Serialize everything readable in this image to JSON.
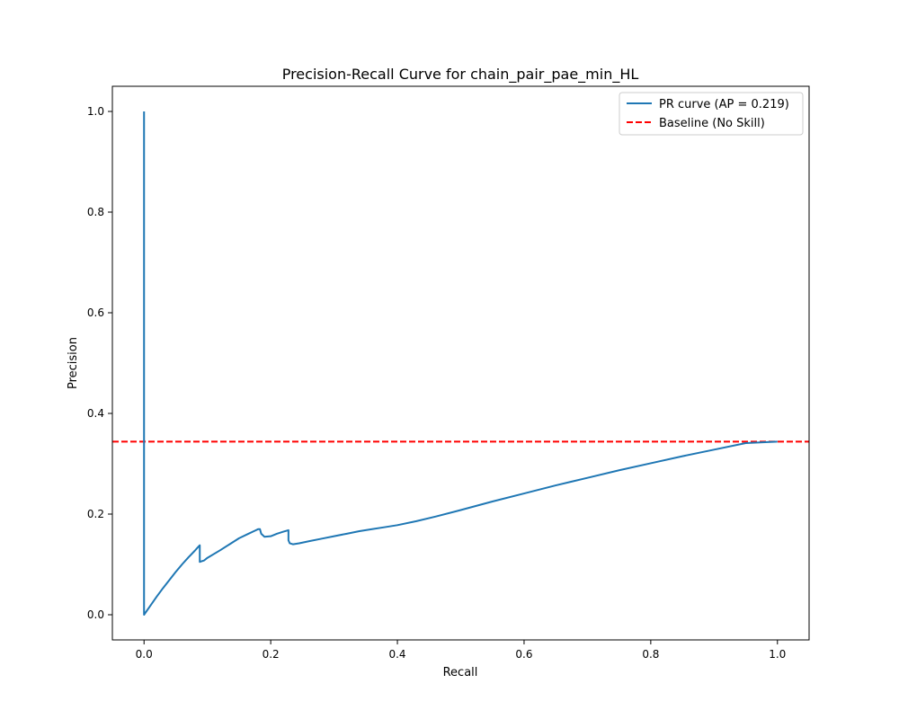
{
  "chart_data": {
    "type": "line",
    "title": "Precision-Recall Curve for chain_pair_pae_min_HL",
    "xlabel": "Recall",
    "ylabel": "Precision",
    "xlim": [
      -0.05,
      1.05
    ],
    "ylim": [
      -0.05,
      1.05
    ],
    "xticks": [
      0.0,
      0.2,
      0.4,
      0.6,
      0.8,
      1.0
    ],
    "yticks": [
      0.0,
      0.2,
      0.4,
      0.6,
      0.8,
      1.0
    ],
    "tick_labels": {
      "x": [
        "0.0",
        "0.2",
        "0.4",
        "0.6",
        "0.8",
        "1.0"
      ],
      "y": [
        "0.0",
        "0.2",
        "0.4",
        "0.6",
        "0.8",
        "1.0"
      ]
    },
    "grid": false,
    "legend_position": "top-right",
    "series": [
      {
        "name": "PR curve (AP = 0.219)",
        "color": "#1f77b4",
        "line_style": "solid",
        "x": [
          0.0,
          0.0,
          0.0,
          0.0,
          0.01,
          0.02,
          0.03,
          0.04,
          0.05,
          0.06,
          0.07,
          0.08,
          0.085,
          0.088,
          0.088,
          0.095,
          0.1,
          0.12,
          0.135,
          0.15,
          0.165,
          0.175,
          0.18,
          0.183,
          0.185,
          0.19,
          0.2,
          0.21,
          0.22,
          0.228,
          0.228,
          0.23,
          0.235,
          0.245,
          0.26,
          0.28,
          0.3,
          0.32,
          0.34,
          0.36,
          0.38,
          0.39,
          0.4,
          0.43,
          0.46,
          0.5,
          0.55,
          0.6,
          0.65,
          0.7,
          0.75,
          0.8,
          0.85,
          0.9,
          0.95,
          1.0
        ],
        "y": [
          1.0,
          0.344,
          0.3,
          0.0,
          0.018,
          0.036,
          0.053,
          0.069,
          0.085,
          0.1,
          0.114,
          0.127,
          0.134,
          0.138,
          0.105,
          0.108,
          0.113,
          0.128,
          0.14,
          0.152,
          0.161,
          0.167,
          0.17,
          0.17,
          0.161,
          0.155,
          0.156,
          0.161,
          0.165,
          0.168,
          0.148,
          0.142,
          0.14,
          0.142,
          0.146,
          0.151,
          0.156,
          0.161,
          0.166,
          0.17,
          0.174,
          0.176,
          0.178,
          0.186,
          0.195,
          0.208,
          0.225,
          0.241,
          0.257,
          0.272,
          0.287,
          0.301,
          0.315,
          0.328,
          0.341,
          0.344
        ]
      },
      {
        "name": "Baseline (No Skill)",
        "color": "#ff0000",
        "line_style": "dashed",
        "y_constant": 0.344
      }
    ]
  }
}
